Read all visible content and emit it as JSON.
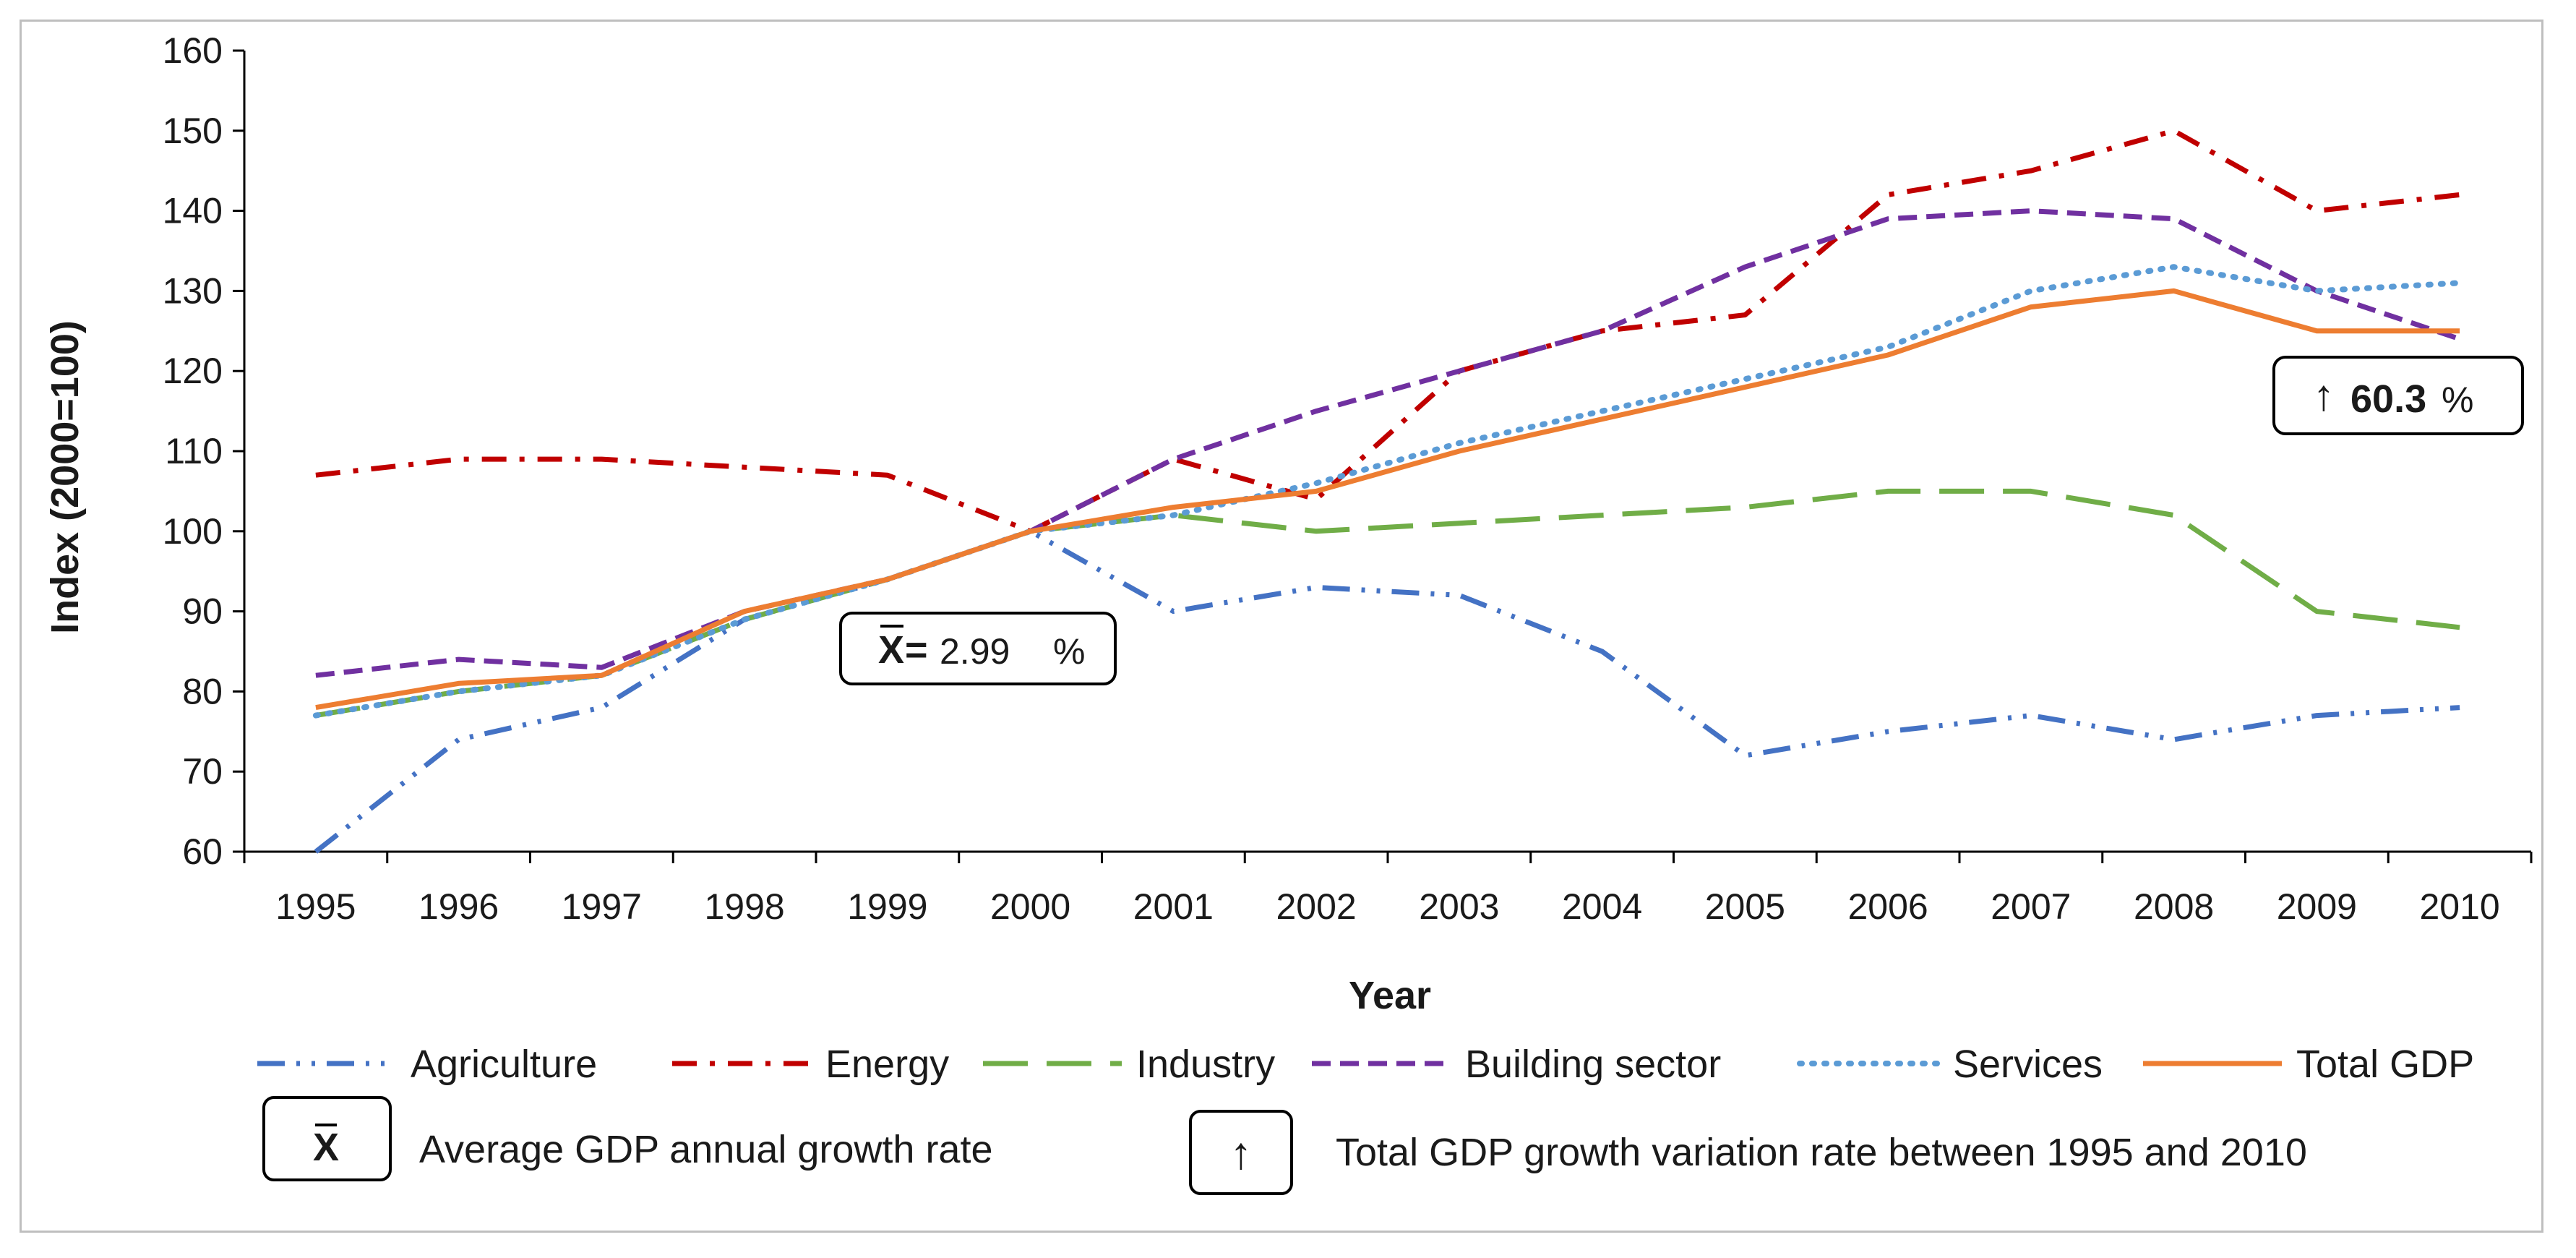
{
  "chart_data": {
    "type": "line",
    "title": "",
    "xlabel": "Year",
    "ylabel": "Index (2000=100)",
    "ylim": [
      60,
      160
    ],
    "yticks": [
      60,
      70,
      80,
      90,
      100,
      110,
      120,
      130,
      140,
      150,
      160
    ],
    "grid": false,
    "legend_position": "bottom",
    "categories": [
      "1995",
      "1996",
      "1997",
      "1998",
      "1999",
      "2000",
      "2001",
      "2002",
      "2003",
      "2004",
      "2005",
      "2006",
      "2007",
      "2008",
      "2009",
      "2010"
    ],
    "series": [
      {
        "name": "Agriculture",
        "color": "#4472C4",
        "dash": "dashdotdot",
        "values": [
          60,
          74,
          78,
          89,
          94,
          100,
          90,
          93,
          92,
          85,
          72,
          75,
          77,
          74,
          77,
          78
        ]
      },
      {
        "name": "Energy",
        "color": "#C00000",
        "dash": "dashdot",
        "values": [
          107,
          109,
          109,
          108,
          107,
          100,
          109,
          104,
          120,
          125,
          127,
          142,
          145,
          150,
          140,
          142
        ]
      },
      {
        "name": "Industry",
        "color": "#70AD47",
        "dash": "longdash",
        "values": [
          77,
          80,
          82,
          89,
          94,
          100,
          102,
          100,
          101,
          102,
          103,
          105,
          105,
          102,
          90,
          88
        ]
      },
      {
        "name": "Building sector",
        "color": "#7030A0",
        "dash": "dash",
        "values": [
          82,
          84,
          83,
          90,
          94,
          100,
          109,
          115,
          120,
          125,
          133,
          139,
          140,
          139,
          130,
          124
        ]
      },
      {
        "name": "Services",
        "color": "#5B9BD5",
        "dash": "dot",
        "values": [
          77,
          80,
          82,
          89,
          94,
          100,
          102,
          106,
          111,
          115,
          119,
          123,
          130,
          133,
          130,
          131
        ]
      },
      {
        "name": "Total GDP",
        "color": "#ED7D31",
        "dash": "solid",
        "values": [
          78,
          81,
          82,
          90,
          94,
          100,
          103,
          105,
          110,
          114,
          118,
          122,
          128,
          130,
          125,
          125
        ]
      }
    ],
    "annotations": {
      "mean_box": {
        "symbol": "X",
        "text": "= ",
        "value": "2.99",
        "unit": "%",
        "near_category": "1999"
      },
      "growth_box": {
        "symbol": "↑",
        "value": "60.3",
        "unit": "%",
        "near_category": "2010"
      }
    },
    "key": {
      "mean": {
        "symbol": "X",
        "label": "Average GDP annual growth rate"
      },
      "growth": {
        "symbol": "↑",
        "label": "Total GDP growth variation rate between 1995 and 2010"
      }
    }
  }
}
